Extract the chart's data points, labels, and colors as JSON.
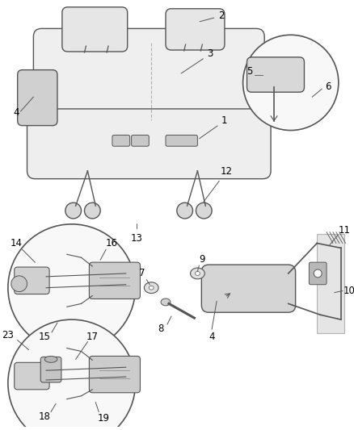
{
  "bg_color": "#ffffff",
  "line_color": "#555555",
  "label_color": "#000000",
  "seat_fill": "#efefef",
  "circle_fill": "#f8f8f8",
  "part_fill": "#d8d8d8"
}
